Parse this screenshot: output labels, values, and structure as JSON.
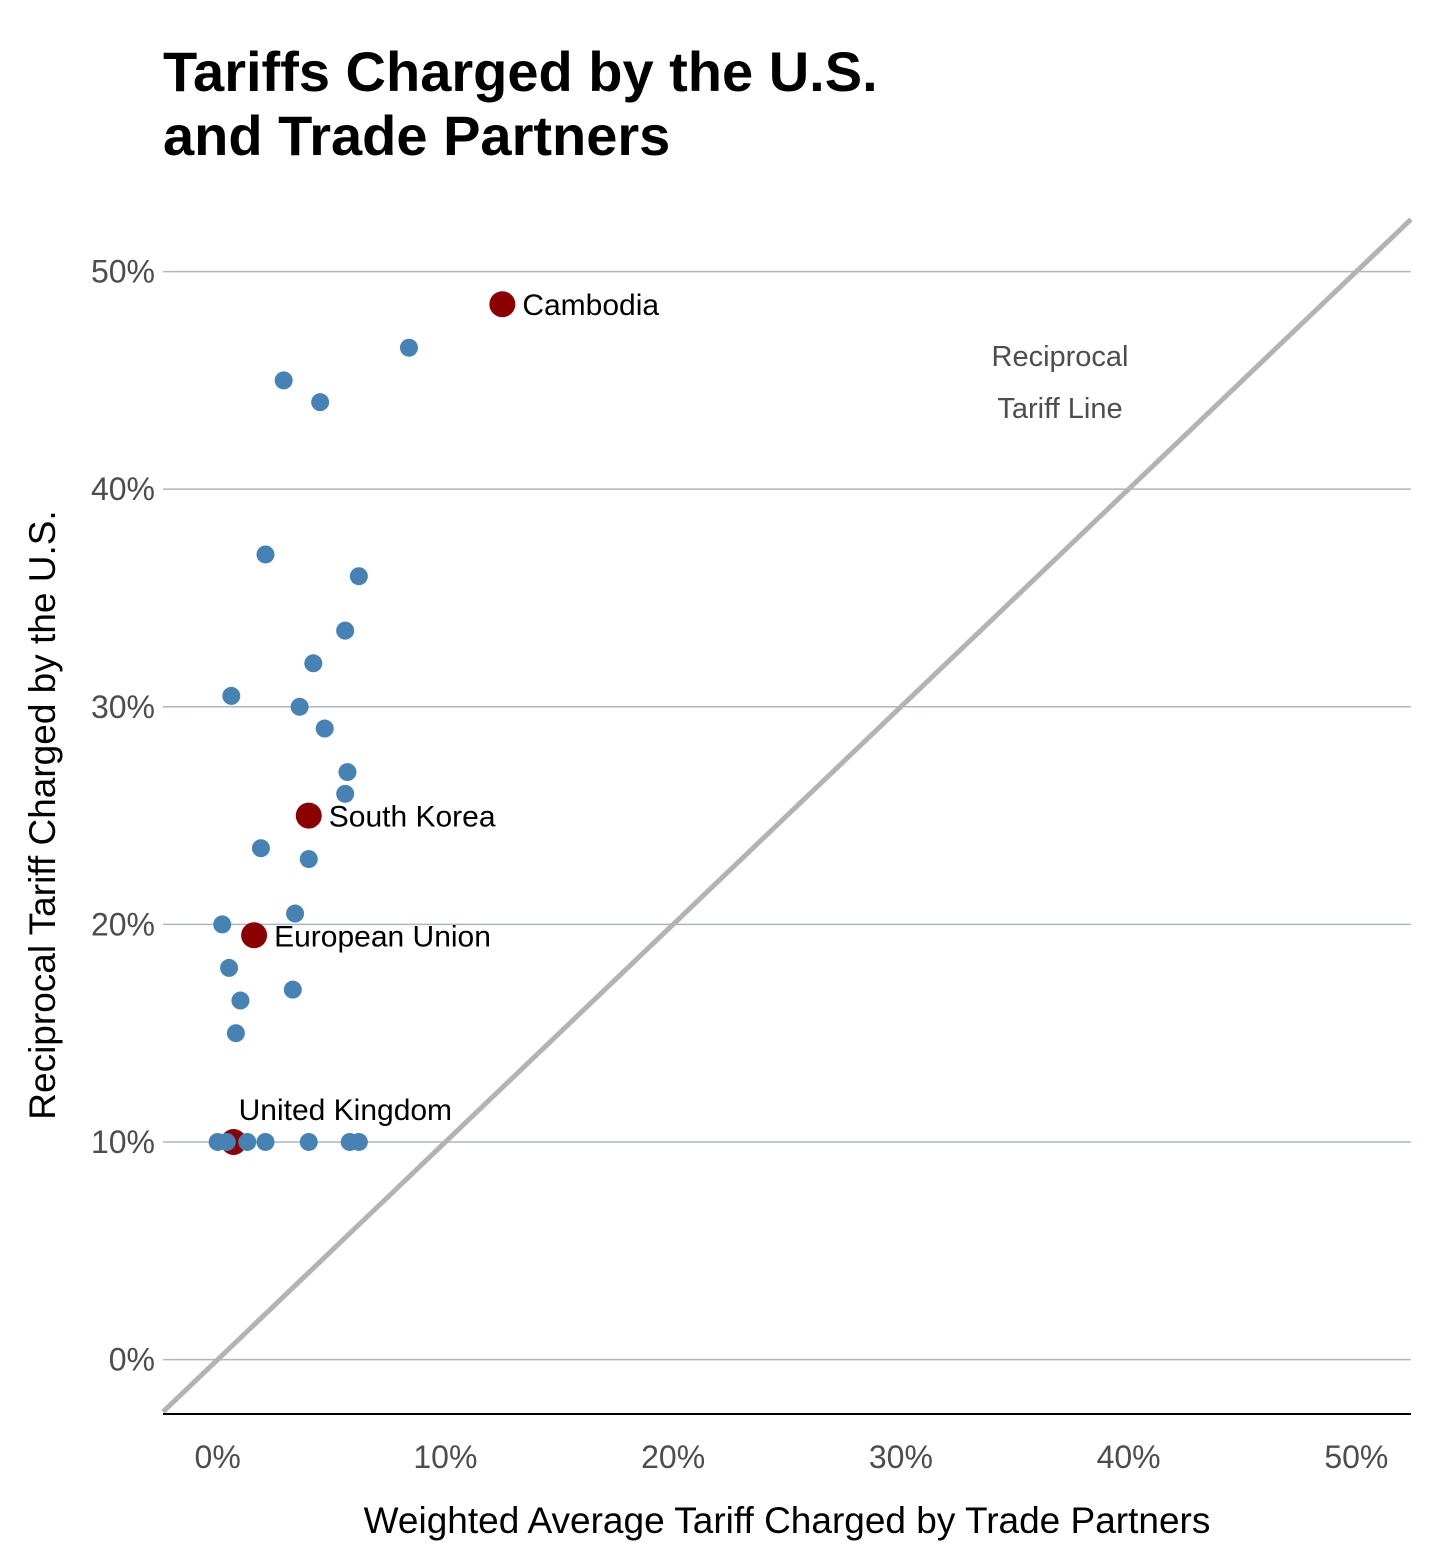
{
  "title_line1": "Tariffs Charged by the U.S.",
  "title_line2": "and Trade Partners",
  "chart_data": {
    "type": "scatter",
    "title": "Tariffs Charged by the U.S. and Trade Partners",
    "xlabel": "Weighted Average Tariff Charged by Trade Partners",
    "ylabel": "Reciprocal Tariff Charged by the U.S.",
    "xlim": [
      -2.4,
      52.4
    ],
    "ylim": [
      -2.5,
      52.6
    ],
    "xticks": [
      0,
      10,
      20,
      30,
      40,
      50
    ],
    "yticks": [
      0,
      10,
      20,
      30,
      40,
      50
    ],
    "xtick_labels": [
      "0%",
      "10%",
      "20%",
      "30%",
      "40%",
      "50%"
    ],
    "ytick_labels": [
      "0%",
      "10%",
      "20%",
      "30%",
      "40%",
      "50%"
    ],
    "grid": "horizontal",
    "colors": {
      "highlight": "#8B0000",
      "other": "#4682B4",
      "reference_line": "#B3B3B3",
      "grid": "#A9B8C4"
    },
    "reference_line": {
      "label_line1": "Reciprocal",
      "label_line2": "Tariff Line",
      "slope": 1,
      "intercept": 0
    },
    "highlighted": [
      {
        "name": "Cambodia",
        "x": 12.5,
        "y": 48.5
      },
      {
        "name": "South Korea",
        "x": 4.0,
        "y": 25.0
      },
      {
        "name": "European Union",
        "x": 1.6,
        "y": 19.5
      },
      {
        "name": "United Kingdom",
        "x": 0.7,
        "y": 10.0
      }
    ],
    "points": [
      {
        "x": 8.4,
        "y": 46.5
      },
      {
        "x": 2.9,
        "y": 45
      },
      {
        "x": 4.5,
        "y": 44
      },
      {
        "x": 2.1,
        "y": 37
      },
      {
        "x": 6.2,
        "y": 36
      },
      {
        "x": 5.6,
        "y": 33.5
      },
      {
        "x": 4.2,
        "y": 32
      },
      {
        "x": 0.6,
        "y": 30.5
      },
      {
        "x": 3.6,
        "y": 30
      },
      {
        "x": 4.7,
        "y": 29
      },
      {
        "x": 5.7,
        "y": 27
      },
      {
        "x": 5.6,
        "y": 26
      },
      {
        "x": 1.9,
        "y": 23.5
      },
      {
        "x": 4.0,
        "y": 23
      },
      {
        "x": 3.4,
        "y": 20.5
      },
      {
        "x": 0.2,
        "y": 20
      },
      {
        "x": 0.5,
        "y": 18
      },
      {
        "x": 1.0,
        "y": 16.5
      },
      {
        "x": 3.3,
        "y": 17
      },
      {
        "x": 0.8,
        "y": 15
      },
      {
        "x": 0.0,
        "y": 10
      },
      {
        "x": 0.4,
        "y": 10
      },
      {
        "x": 1.3,
        "y": 10
      },
      {
        "x": 2.1,
        "y": 10
      },
      {
        "x": 4.0,
        "y": 10
      },
      {
        "x": 5.8,
        "y": 10
      },
      {
        "x": 6.2,
        "y": 10
      }
    ]
  }
}
